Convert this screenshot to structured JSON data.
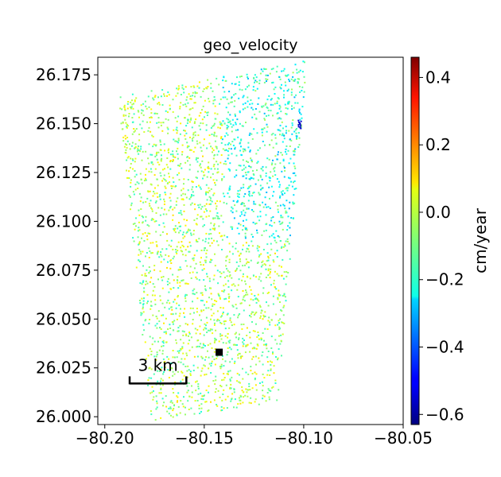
{
  "chart_data": {
    "type": "heatmap",
    "title": "geo_velocity",
    "xlim": [
      -80.2035,
      -80.05
    ],
    "ylim": [
      25.996,
      26.184
    ],
    "x_ticks": [
      {
        "value": -80.2,
        "label": "−80.20"
      },
      {
        "value": -80.15,
        "label": "−80.15"
      },
      {
        "value": -80.1,
        "label": "−80.10"
      },
      {
        "value": -80.05,
        "label": "−80.05"
      }
    ],
    "y_ticks": [
      {
        "value": 26.0,
        "label": "26.000"
      },
      {
        "value": 26.025,
        "label": "26.025"
      },
      {
        "value": 26.05,
        "label": "26.050"
      },
      {
        "value": 26.075,
        "label": "26.075"
      },
      {
        "value": 26.1,
        "label": "26.100"
      },
      {
        "value": 26.125,
        "label": "26.125"
      },
      {
        "value": 26.15,
        "label": "26.150"
      },
      {
        "value": 26.175,
        "label": "26.175"
      }
    ],
    "colorbar": {
      "label": "cm/year",
      "colormap": "jet",
      "range": [
        -0.63,
        0.46
      ],
      "ticks": [
        {
          "value": 0.4,
          "label": "0.4"
        },
        {
          "value": 0.2,
          "label": "0.2"
        },
        {
          "value": 0.0,
          "label": "0.0"
        },
        {
          "value": -0.2,
          "label": "−0.2"
        },
        {
          "value": -0.4,
          "label": "−0.4"
        },
        {
          "value": -0.6,
          "label": "−0.6"
        }
      ]
    },
    "data_footprint_corners": [
      {
        "lon": -80.1935,
        "lat": 26.164
      },
      {
        "lon": -80.0985,
        "lat": 26.183
      },
      {
        "lon": -80.1135,
        "lat": 26.008
      },
      {
        "lon": -80.177,
        "lat": 25.998
      }
    ],
    "typical_velocity": -0.05,
    "velocity_range_main": [
      -0.22,
      0.05
    ],
    "reference_point": {
      "lon": -80.1425,
      "lat": 26.033
    },
    "scale_bar": {
      "label": "3 km",
      "lon_start": -80.1875,
      "lon_end": -80.159,
      "lat": 26.017
    },
    "grid": false,
    "legend": "none"
  }
}
